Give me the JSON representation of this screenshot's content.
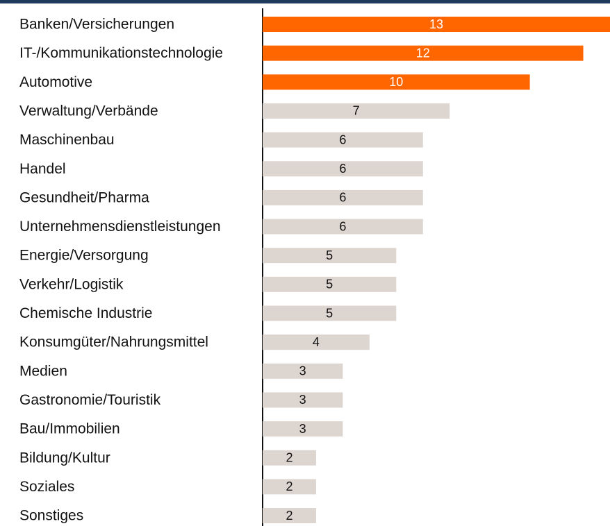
{
  "chart_data": {
    "type": "barh",
    "categories": [
      "Banken/Versicherungen",
      "IT-/Kommunikationstechnologie",
      "Automotive",
      "Verwaltung/Verbände",
      "Maschinenbau",
      "Handel",
      "Gesundheit/Pharma",
      "Unternehmensdienstleistungen",
      "Energie/Versorgung",
      "Verkehr/Logistik",
      "Chemische Industrie",
      "Konsumgüter/Nahrungsmittel",
      "Medien",
      "Gastronomie/Touristik",
      "Bau/Immobilien",
      "Bildung/Kultur",
      "Soziales",
      "Sonstiges"
    ],
    "values": [
      13,
      12,
      10,
      7,
      6,
      6,
      6,
      6,
      5,
      5,
      5,
      4,
      3,
      3,
      3,
      2,
      2,
      2
    ],
    "colors": [
      "#ff6600",
      "#ff6600",
      "#ff6600",
      "#ddd5d0",
      "#ddd5d0",
      "#ddd5d0",
      "#ddd5d0",
      "#ddd5d0",
      "#ddd5d0",
      "#ddd5d0",
      "#ddd5d0",
      "#ddd5d0",
      "#ddd5d0",
      "#ddd5d0",
      "#ddd5d0",
      "#ddd5d0",
      "#ddd5d0",
      "#ddd5d0"
    ],
    "xlim": [
      0,
      13
    ]
  }
}
